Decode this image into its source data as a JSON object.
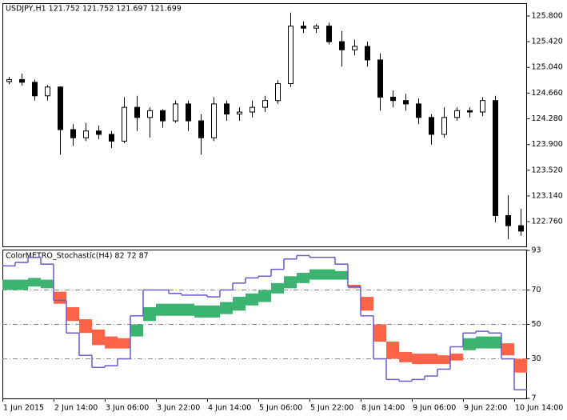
{
  "chart_data": [
    {
      "type": "candlestick",
      "title": "USDJPY,H1  121.752 121.752 121.697 121.699",
      "categories": [
        "1 Jun 2015",
        null,
        null,
        null,
        "2 Jun 14:00",
        null,
        null,
        null,
        "3 Jun 06:00",
        null,
        null,
        null,
        "3 Jun 22:00",
        null,
        null,
        null,
        "4 Jun 14:00",
        null,
        null,
        null,
        "5 Jun 06:00",
        null,
        null,
        null,
        "5 Jun 22:00",
        null,
        null,
        null,
        "8 Jun 14:00",
        null,
        null,
        null,
        "9 Jun 06:00",
        null,
        null,
        null,
        "9 Jun 22:00",
        null,
        null,
        null,
        "10 Jun 14:00"
      ],
      "open": [
        124.83,
        124.86,
        124.82,
        124.62,
        124.75,
        124.12,
        124.0,
        124.1,
        124.05,
        123.95,
        124.45,
        124.3,
        124.4,
        124.25,
        124.5,
        124.25,
        124.0,
        124.5,
        124.35,
        124.38,
        124.45,
        124.55,
        124.8,
        125.65,
        125.62,
        125.65,
        125.42,
        125.3,
        125.35,
        125.15,
        124.6,
        124.55,
        124.5,
        124.3,
        124.05,
        124.3,
        124.4,
        124.38,
        124.55,
        122.85,
        122.7
      ],
      "high": [
        124.9,
        124.95,
        124.86,
        124.78,
        124.76,
        124.2,
        124.22,
        124.18,
        124.1,
        124.6,
        124.62,
        124.45,
        124.42,
        124.55,
        124.55,
        124.35,
        124.6,
        124.55,
        124.45,
        124.55,
        124.62,
        124.85,
        125.85,
        125.72,
        125.68,
        125.7,
        125.58,
        125.45,
        125.42,
        125.25,
        124.7,
        124.65,
        124.58,
        124.35,
        124.45,
        124.45,
        124.45,
        124.6,
        124.62,
        123.15,
        122.95
      ],
      "low": [
        124.79,
        124.77,
        124.55,
        124.55,
        123.75,
        123.88,
        123.95,
        123.98,
        123.85,
        123.92,
        124.1,
        124.0,
        124.15,
        124.22,
        124.1,
        123.75,
        123.95,
        124.25,
        124.25,
        124.3,
        124.38,
        124.5,
        124.75,
        125.55,
        125.55,
        125.38,
        125.05,
        125.22,
        125.05,
        124.4,
        124.45,
        124.4,
        124.2,
        123.9,
        124.0,
        124.25,
        124.3,
        124.32,
        122.75,
        122.5,
        122.55
      ],
      "close": [
        124.86,
        124.82,
        124.62,
        124.75,
        124.12,
        124.0,
        124.1,
        124.05,
        123.95,
        124.45,
        124.3,
        124.4,
        124.25,
        124.5,
        124.25,
        124.0,
        124.5,
        124.35,
        124.38,
        124.45,
        124.55,
        124.8,
        125.65,
        125.62,
        125.65,
        125.42,
        125.3,
        125.35,
        125.15,
        124.6,
        124.55,
        124.5,
        124.3,
        124.05,
        124.3,
        124.4,
        124.38,
        124.55,
        122.85,
        122.7,
        122.62
      ],
      "ylim": [
        122.394,
        125.977
      ],
      "yticks": [
        {
          "value": 125.8,
          "label": "125.800"
        },
        {
          "value": 125.42,
          "label": "125.420"
        },
        {
          "value": 125.04,
          "label": "125.040"
        },
        {
          "value": 124.66,
          "label": "124.660"
        },
        {
          "value": 124.28,
          "label": "124.280"
        },
        {
          "value": 123.9,
          "label": "123.900"
        },
        {
          "value": 123.52,
          "label": "123.520"
        },
        {
          "value": 123.14,
          "label": "123.140"
        },
        {
          "value": 122.76,
          "label": "122.760"
        }
      ]
    },
    {
      "type": "band",
      "title": "ColorMETRO_Stochastic(H4) 82 72 87",
      "up_color": "#3cb371",
      "down_color": "#ff6347",
      "series": [
        {
          "values": [
            76,
            76,
            77,
            76,
            62,
            52,
            45,
            38,
            36,
            36,
            50,
            60,
            62,
            62,
            62,
            61,
            61,
            63,
            66,
            68,
            70,
            74,
            78,
            80,
            82,
            82,
            81,
            71,
            58,
            40,
            30,
            28,
            27,
            27,
            27,
            29,
            42,
            43,
            43,
            32,
            22
          ]
        },
        {
          "values": [
            70,
            70,
            72,
            71,
            69,
            60,
            53,
            47,
            43,
            42,
            43,
            52,
            55,
            55,
            55,
            54,
            54,
            56,
            58,
            61,
            63,
            68,
            71,
            74,
            76,
            76,
            76,
            73,
            66,
            50,
            40,
            34,
            33,
            33,
            32,
            33,
            35,
            36,
            36,
            39,
            30
          ]
        },
        {
          "color": "#6a5acd",
          "values": [
            84,
            86,
            89,
            85,
            64,
            45,
            32,
            25,
            26,
            30,
            55,
            70,
            70,
            68,
            67,
            67,
            66,
            70,
            74,
            77,
            78,
            82,
            88,
            90,
            89,
            89,
            85,
            72,
            55,
            30,
            18,
            17,
            18,
            20,
            24,
            37,
            45,
            46,
            45,
            30,
            12
          ]
        }
      ],
      "ylim": [
        7,
        93
      ],
      "yticks": [
        93,
        70,
        50,
        30,
        7
      ],
      "levels": [
        70,
        50,
        30
      ]
    }
  ]
}
